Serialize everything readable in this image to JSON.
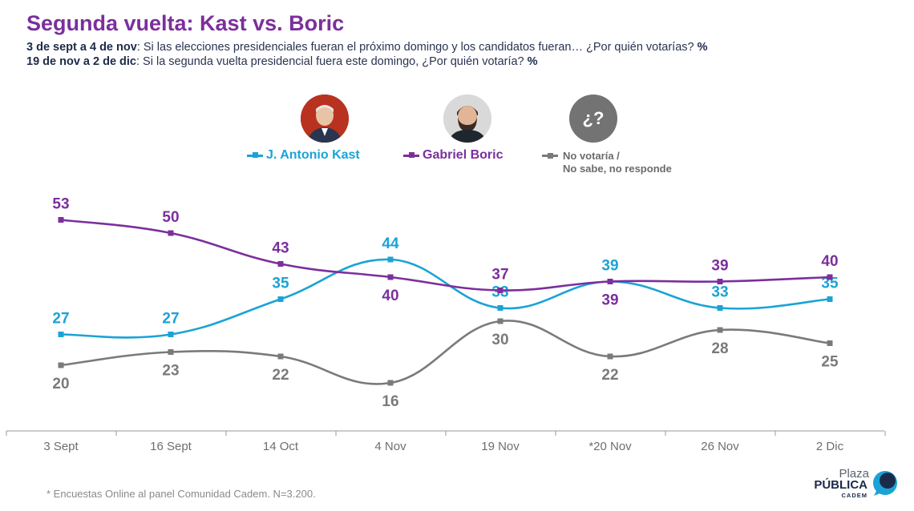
{
  "header": {
    "title": "Segunda vuelta: Kast vs. Boric",
    "line1_bold": "3 de sept a 4 de nov",
    "line1_text": ": Si las elecciones presidenciales fueran el próximo domingo y los candidatos fueran… ¿Por quién votarías?",
    "line1_pct": "%",
    "line2_bold": "19 de nov a 2 de dic",
    "line2_text": ": Si la segunda vuelta presidencial fuera este domingo, ¿Por quién votaría?",
    "line2_pct": "%"
  },
  "legend": {
    "kast": "J. Antonio Kast",
    "boric": "Gabriel Boric",
    "nr_line1": "No votaría /",
    "nr_line2": "No sabe, no responde",
    "unknown_avatar": "¿?"
  },
  "colors": {
    "kast": "#1aa3d6",
    "boric": "#7b2f9c",
    "nr": "#7a7a7a",
    "title": "#7b2f9c"
  },
  "chart_data": {
    "type": "line",
    "categories": [
      "3 Sept",
      "16 Sept",
      "14 Oct",
      "4 Nov",
      "19 Nov",
      "*20 Nov",
      "26 Nov",
      "2 Dic"
    ],
    "series": [
      {
        "name": "J. Antonio Kast",
        "values": [
          27,
          27,
          35,
          44,
          33,
          39,
          33,
          35
        ]
      },
      {
        "name": "Gabriel Boric",
        "values": [
          53,
          50,
          43,
          40,
          37,
          39,
          39,
          40
        ]
      },
      {
        "name": "No votaría / No sabe, no responde",
        "values": [
          20,
          23,
          22,
          16,
          30,
          22,
          28,
          25
        ]
      }
    ],
    "label_position": {
      "kast": [
        "above",
        "above",
        "above",
        "above",
        "above",
        "above",
        "above",
        "above"
      ],
      "boric": [
        "above",
        "above",
        "above",
        "below",
        "above",
        "below",
        "above",
        "above"
      ],
      "nr": [
        "below",
        "below",
        "below",
        "below",
        "below",
        "below",
        "below",
        "below"
      ]
    },
    "grid": false,
    "legend_position": "top-center"
  },
  "footnote": "* Encuestas Online al panel Comunidad Cadem. N=3.200.",
  "logo": {
    "line1": "Plaza",
    "line2": "PÚBLICA",
    "line3": "CADEM"
  }
}
